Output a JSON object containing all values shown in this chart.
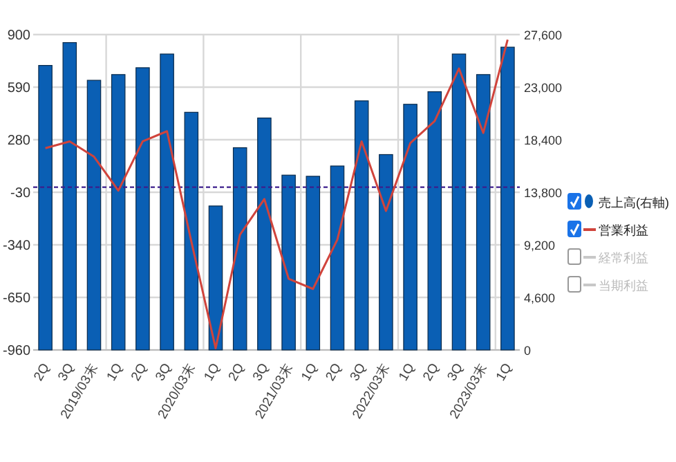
{
  "chart_data": {
    "type": "bar",
    "categories": [
      "2Q",
      "3Q",
      "2019/03末",
      "1Q",
      "2Q",
      "3Q",
      "2020/03末",
      "1Q",
      "2Q",
      "3Q",
      "2021/03末",
      "1Q",
      "2Q",
      "3Q",
      "2022/03末",
      "1Q",
      "2Q",
      "3Q",
      "2023/03末",
      "1Q"
    ],
    "series": [
      {
        "name": "売上高(右軸)",
        "axis": "y2",
        "color": "#0a5fb4",
        "values": [
          24900,
          26900,
          23600,
          24100,
          24700,
          25900,
          20800,
          12600,
          17700,
          20300,
          15300,
          15200,
          16100,
          21800,
          17100,
          21500,
          22600,
          25900,
          24100,
          26500
        ]
      },
      {
        "name": "営業利益",
        "type": "line",
        "axis": "y",
        "color": "#d0443c",
        "values": [
          230,
          270,
          180,
          -20,
          270,
          330,
          -320,
          -950,
          -280,
          -70,
          -540,
          -600,
          -310,
          270,
          -140,
          260,
          390,
          700,
          320,
          870
        ]
      },
      {
        "name": "経常利益",
        "type": "line",
        "axis": "y",
        "color": "#c8c8c8",
        "values": [
          null,
          null,
          null,
          null,
          null,
          null,
          null,
          null,
          null,
          null,
          null,
          null,
          null,
          null,
          null,
          null,
          null,
          null,
          null,
          null
        ]
      },
      {
        "name": "当期利益",
        "type": "line",
        "axis": "y",
        "color": "#c8c8c8",
        "values": [
          null,
          null,
          null,
          null,
          null,
          null,
          null,
          null,
          null,
          null,
          null,
          null,
          null,
          null,
          null,
          null,
          null,
          null,
          null,
          null
        ]
      }
    ],
    "ylim": [
      -960,
      900
    ],
    "yticks": [
      -960,
      -650,
      -340,
      -30,
      280,
      590,
      900
    ],
    "y2lim": [
      0,
      27600
    ],
    "y2ticks": [
      {
        "value": 0,
        "label": "0"
      },
      {
        "value": 4600,
        "label": "4,600"
      },
      {
        "value": 9200,
        "label": "9,200"
      },
      {
        "value": 13800,
        "label": "13,800"
      },
      {
        "value": 18400,
        "label": "18,400"
      },
      {
        "value": 23000,
        "label": "23,000"
      },
      {
        "value": 27600,
        "label": "27,600"
      }
    ],
    "ref_lines": [
      {
        "axis": "y",
        "value": 0,
        "color": "#3c1e8c",
        "line_style": "dashed"
      }
    ],
    "grid": true,
    "legend": "right"
  }
}
